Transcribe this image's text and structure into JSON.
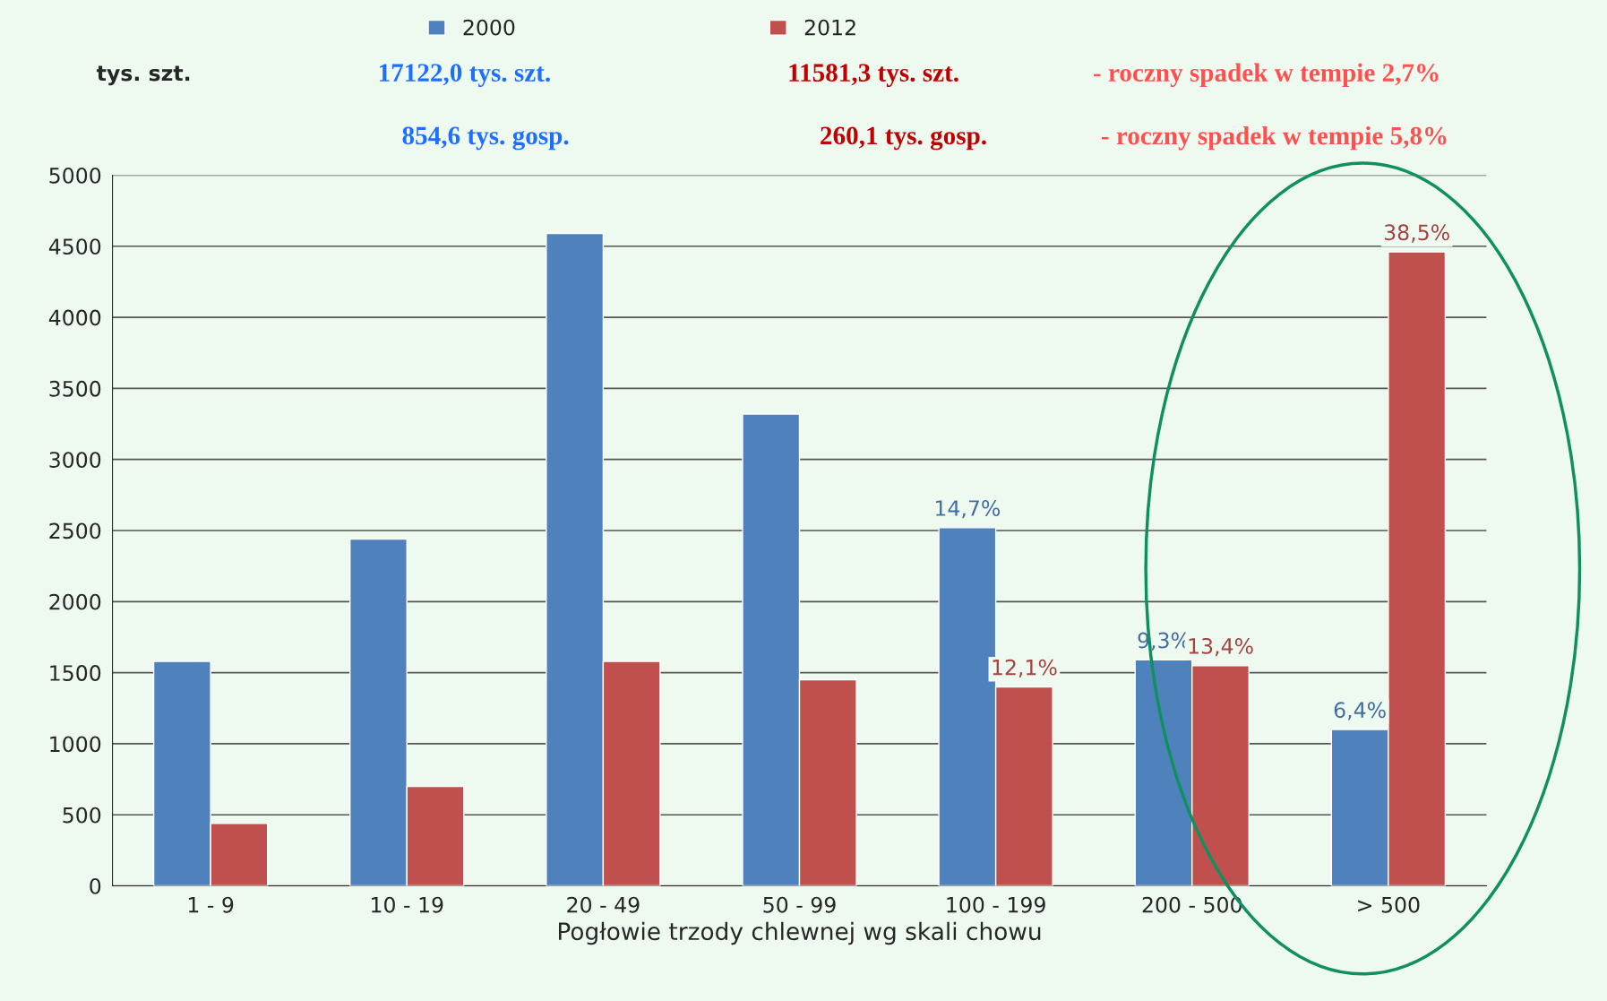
{
  "chart_data": {
    "type": "bar",
    "xlabel": "Pogłowie trzody chlewnej wg skali chowu",
    "ylabel": "tys. szt.",
    "categories": [
      "1 - 9",
      "10 - 19",
      "20 - 49",
      "50 - 99",
      "100 - 199",
      "200 - 500",
      "> 500"
    ],
    "series": [
      {
        "name": "2000",
        "color": "#4f81bd",
        "values": [
          1580,
          2440,
          4590,
          3320,
          2520,
          1590,
          1100
        ]
      },
      {
        "name": "2012",
        "color": "#c0504d",
        "values": [
          440,
          700,
          1580,
          1450,
          1400,
          1550,
          4460
        ]
      }
    ],
    "ylim": [
      0,
      5000
    ],
    "yticks": [
      0,
      500,
      1000,
      1500,
      2000,
      2500,
      3000,
      3500,
      4000,
      4500,
      5000
    ],
    "grid": "y",
    "legend": "top",
    "annotations": [
      "17122,0 tys. szt.",
      "11581,3 tys. szt.",
      "- roczny spadek w tempie 2,7%",
      "854,6 tys. gosp.",
      "260,1 tys. gosp.",
      "- roczny spadek w tempie 5,8%",
      {
        "text": "14,7%",
        "x": "100 - 199",
        "y": 2520
      },
      {
        "text": "9,3%",
        "x": "200 - 500",
        "y": 1590
      },
      {
        "text": "6,4%",
        "x": "> 500",
        "y": 1100
      },
      {
        "text": "12,1%",
        "x": "100 - 199",
        "y": 1400
      },
      {
        "text": "13,4%",
        "x": "200 - 500",
        "y": 1550
      },
      {
        "text": "38,5%",
        "x": "> 500",
        "y": 4460
      }
    ]
  }
}
